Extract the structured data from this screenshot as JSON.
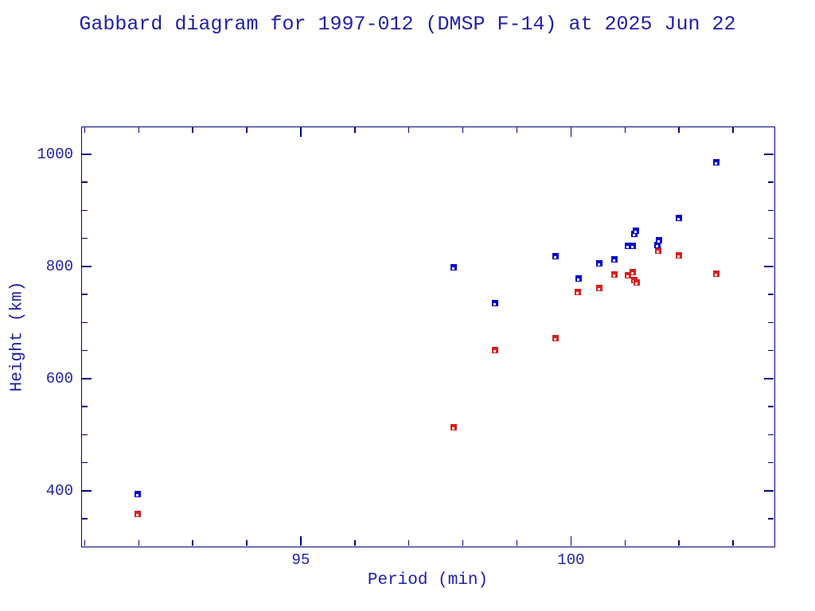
{
  "colors": {
    "axis": "#000080",
    "text": "#1f1fa8",
    "apogee": "#0000cd",
    "perigee": "#d81e1e"
  },
  "chart_data": {
    "type": "scatter",
    "title": "Gabbard diagram for 1997-012 (DMSP F-14) at 2025 Jun 22",
    "xlabel": "Period (min)",
    "ylabel": "Height (km)",
    "xlim": [
      90.95,
      103.75
    ],
    "ylim": [
      302,
      1048
    ],
    "x_major_ticks": [
      95,
      100
    ],
    "x_minor_step": 1,
    "y_major_ticks": [
      400,
      600,
      800,
      1000
    ],
    "y_minor_step": 50,
    "grid": false,
    "legend": "none",
    "marker": "square-with-notch",
    "series": [
      {
        "name": "perigee",
        "color_key": "perigee",
        "points": [
          [
            91.98,
            359
          ],
          [
            97.83,
            513
          ],
          [
            98.6,
            651
          ],
          [
            99.71,
            672
          ],
          [
            100.13,
            755
          ],
          [
            100.52,
            762
          ],
          [
            100.8,
            786
          ],
          [
            101.06,
            784
          ],
          [
            101.15,
            790
          ],
          [
            101.17,
            775
          ],
          [
            101.21,
            771
          ],
          [
            101.61,
            828
          ],
          [
            102.0,
            819
          ],
          [
            102.69,
            787
          ]
        ]
      },
      {
        "name": "apogee",
        "color_key": "apogee",
        "points": [
          [
            91.98,
            394
          ],
          [
            97.83,
            799
          ],
          [
            98.59,
            735
          ],
          [
            99.71,
            818
          ],
          [
            100.14,
            778
          ],
          [
            100.53,
            806
          ],
          [
            100.8,
            812
          ],
          [
            101.06,
            836
          ],
          [
            101.15,
            836
          ],
          [
            101.17,
            858
          ],
          [
            101.2,
            864
          ],
          [
            101.6,
            838
          ],
          [
            101.63,
            847
          ],
          [
            102.0,
            886
          ],
          [
            102.69,
            986
          ]
        ]
      }
    ]
  }
}
